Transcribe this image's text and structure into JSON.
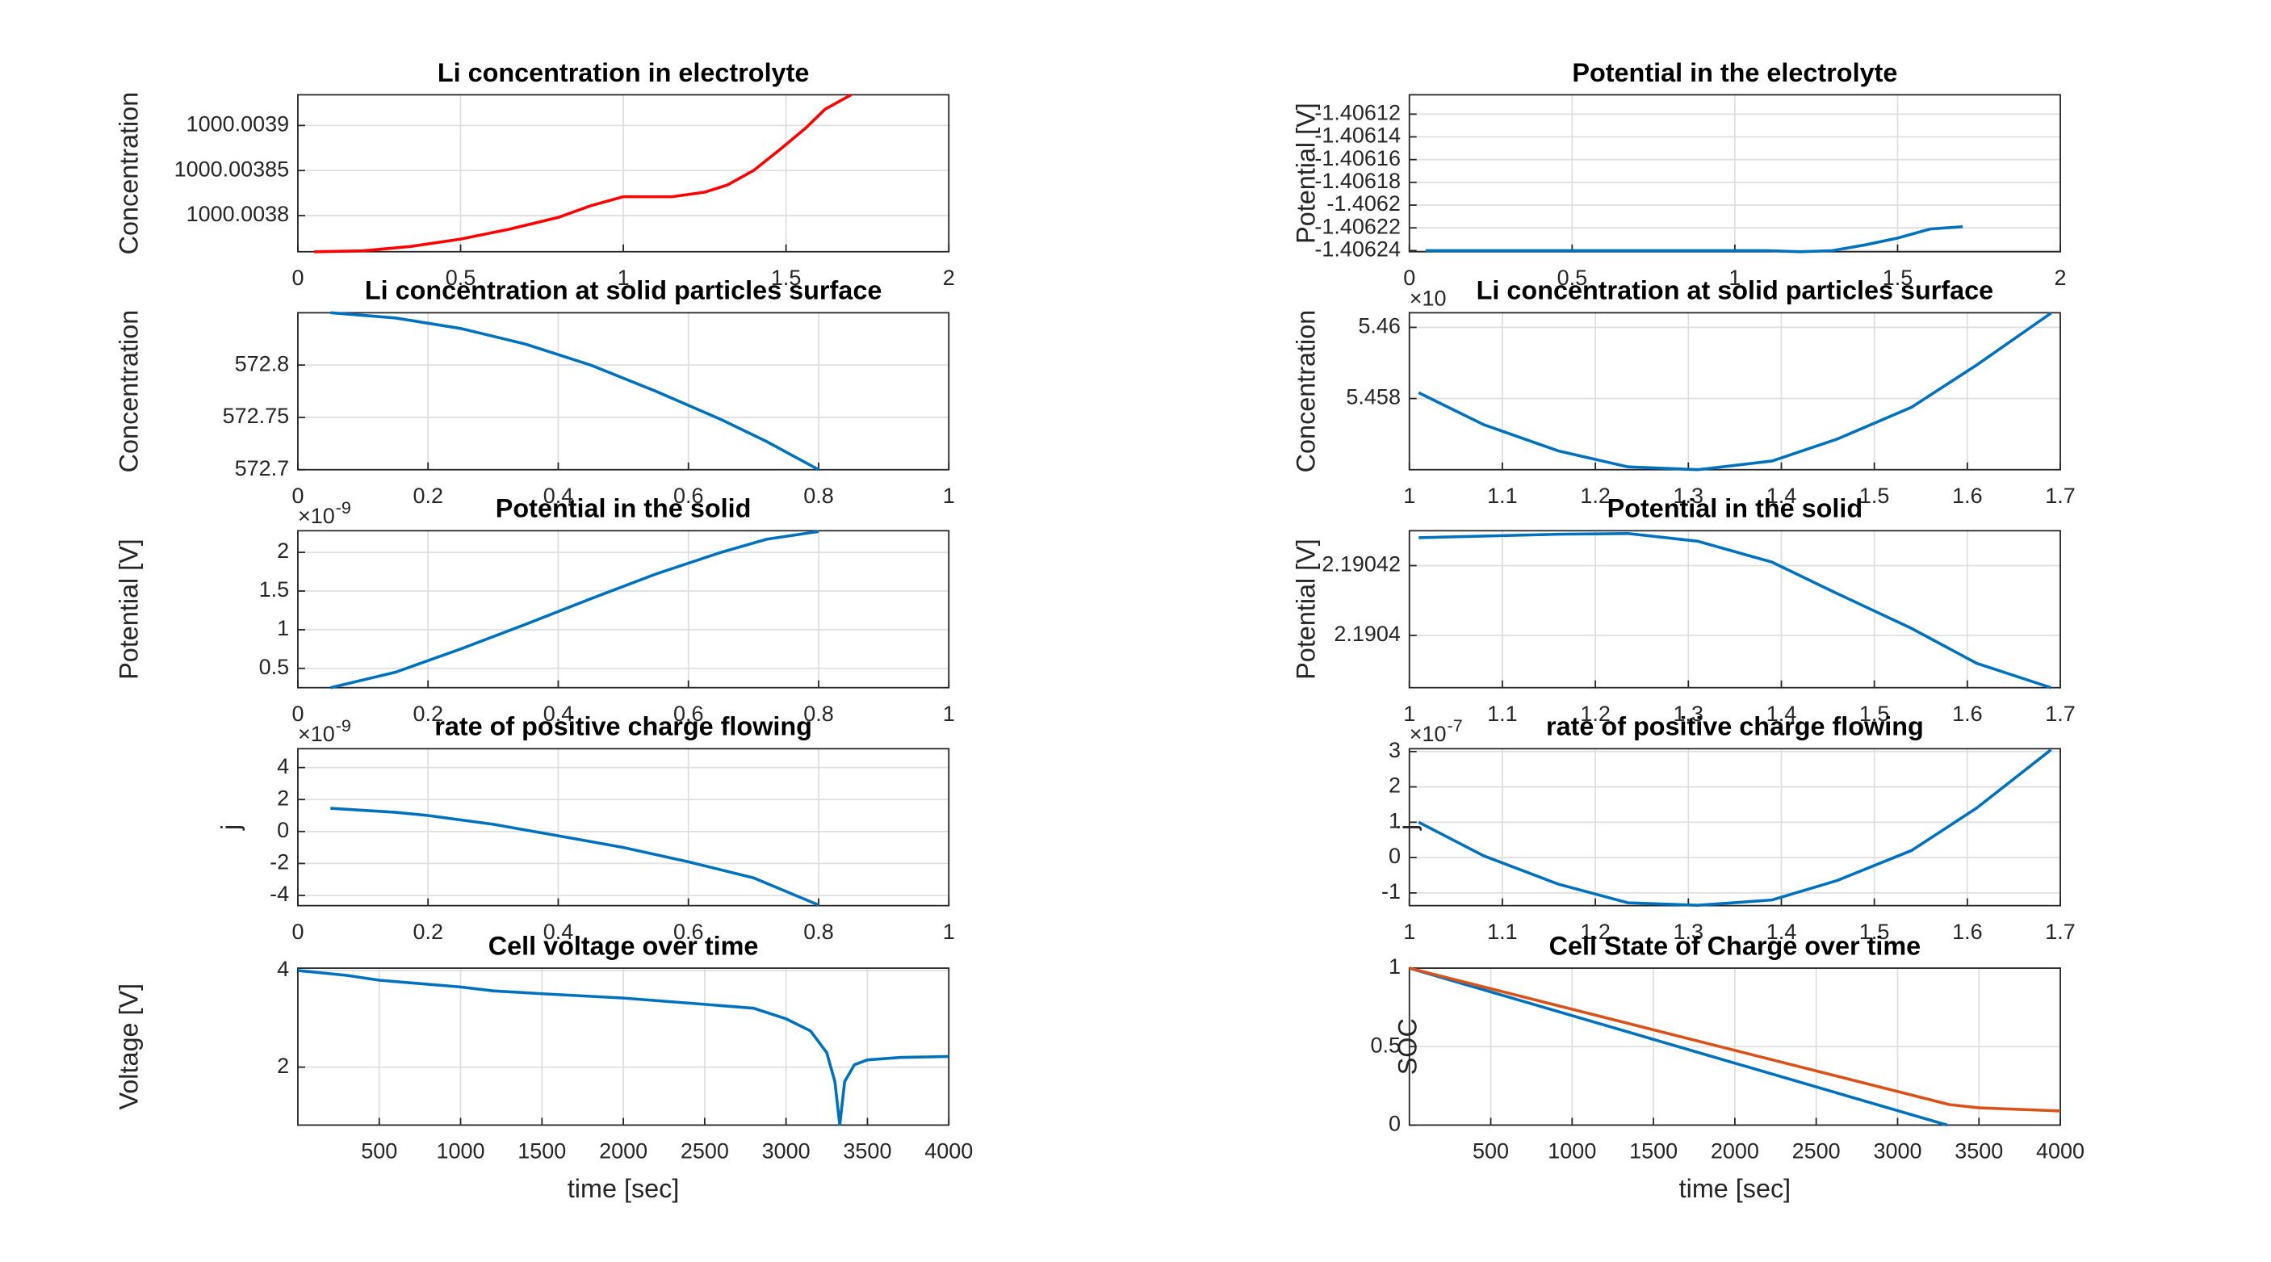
{
  "chart_data": [
    {
      "type": "line",
      "title": "Li concentration in electrolyte",
      "ylabel": "Concentration",
      "xlim": [
        0,
        2
      ],
      "ylim": [
        1000.00376,
        1000.003934
      ],
      "xticks": [
        0,
        0.5,
        1,
        1.5,
        2
      ],
      "yticks": [
        1000.0038,
        1000.00385,
        1000.0039
      ],
      "grid": true,
      "series": [
        {
          "color": "#ff0000",
          "x": [
            0.05,
            0.2,
            0.35,
            0.5,
            0.65,
            0.8,
            0.9,
            1.0,
            1.15,
            1.25,
            1.32,
            1.4,
            1.48,
            1.56,
            1.62,
            1.7
          ],
          "values": [
            1000.00376,
            1000.003761,
            1000.003766,
            1000.003774,
            1000.003785,
            1000.003798,
            1000.003811,
            1000.003821,
            1000.003821,
            1000.003826,
            1000.003834,
            1000.00385,
            1000.003873,
            1000.003897,
            1000.003918,
            1000.003934
          ]
        }
      ]
    },
    {
      "type": "line",
      "title": "Potential in the electrolyte",
      "ylabel": "Potential [V]",
      "xlim": [
        0,
        2
      ],
      "ylim": [
        -1.406241,
        -1.406103
      ],
      "xticks": [
        0,
        0.5,
        1,
        1.5,
        2
      ],
      "yticks": [
        -1.40624,
        -1.40622,
        -1.4062,
        -1.40618,
        -1.40616,
        -1.40614,
        -1.40612
      ],
      "grid": true,
      "series": [
        {
          "color": "#0072bd",
          "x": [
            0.05,
            0.3,
            0.6,
            0.9,
            1.1,
            1.2,
            1.3,
            1.4,
            1.5,
            1.6,
            1.7
          ],
          "values": [
            -1.40624,
            -1.40624,
            -1.40624,
            -1.40624,
            -1.40624,
            -1.406241,
            -1.40624,
            -1.406235,
            -1.406229,
            -1.406221,
            -1.406219
          ]
        }
      ]
    },
    {
      "type": "line",
      "title": "Li concentration at solid particles surface",
      "ylabel": "Concentration",
      "xlim": [
        0,
        1
      ],
      "ylim": [
        572.7,
        572.85
      ],
      "xticks": [
        0,
        0.2,
        0.4,
        0.6,
        0.8,
        1
      ],
      "yticks": [
        572.7,
        572.75,
        572.8
      ],
      "grid": true,
      "series": [
        {
          "color": "#0072bd",
          "x": [
            0.05,
            0.15,
            0.25,
            0.35,
            0.45,
            0.55,
            0.65,
            0.72,
            0.8
          ],
          "values": [
            572.85,
            572.845,
            572.835,
            572.82,
            572.8,
            572.775,
            572.748,
            572.727,
            572.7
          ]
        }
      ]
    },
    {
      "type": "line",
      "title": "Li concentration at solid particles surface",
      "ylabel": "Concentration",
      "y_multiplier": "×10",
      "xlim": [
        1,
        1.7
      ],
      "ylim": [
        5.456,
        5.46041
      ],
      "xticks": [
        1,
        1.1,
        1.2,
        1.3,
        1.4,
        1.5,
        1.6,
        1.7
      ],
      "yticks": [
        5.458,
        5.46
      ],
      "grid": true,
      "series": [
        {
          "color": "#0072bd",
          "x": [
            1.01,
            1.08,
            1.16,
            1.235,
            1.31,
            1.39,
            1.46,
            1.54,
            1.61,
            1.69
          ],
          "values": [
            5.458163,
            5.457265,
            5.45653,
            5.45608,
            5.456,
            5.456245,
            5.45686,
            5.457755,
            5.45894,
            5.4604
          ]
        }
      ]
    },
    {
      "type": "line",
      "title": "Potential in the solid",
      "ylabel": "Potential [V]",
      "y_multiplier": "×10",
      "y_exponent": "-9",
      "xlim": [
        0,
        1
      ],
      "ylim": [
        0.25,
        2.28
      ],
      "xticks": [
        0,
        0.2,
        0.4,
        0.6,
        0.8,
        1
      ],
      "yticks": [
        0.5,
        1,
        1.5,
        2
      ],
      "grid": true,
      "series": [
        {
          "color": "#0072bd",
          "x": [
            0.05,
            0.15,
            0.25,
            0.35,
            0.45,
            0.55,
            0.65,
            0.72,
            0.8
          ],
          "values": [
            0.25,
            0.45,
            0.75,
            1.07,
            1.4,
            1.72,
            2.0,
            2.17,
            2.27
          ]
        }
      ]
    },
    {
      "type": "line",
      "title": "Potential in the solid",
      "ylabel": "Potential [V]",
      "xlim": [
        1,
        1.7
      ],
      "ylim": [
        2.190385,
        2.19043
      ],
      "xticks": [
        1,
        1.1,
        1.2,
        1.3,
        1.4,
        1.5,
        1.6,
        1.7
      ],
      "yticks": [
        2.1904,
        2.19042
      ],
      "grid": true,
      "series": [
        {
          "color": "#0072bd",
          "x": [
            1.01,
            1.16,
            1.235,
            1.31,
            1.39,
            1.46,
            1.54,
            1.61,
            1.69
          ],
          "values": [
            2.190428,
            2.190429,
            2.1904292,
            2.190427,
            2.190421,
            2.190412,
            2.190402,
            2.190392,
            2.190385
          ]
        }
      ]
    },
    {
      "type": "line",
      "title": "rate of positive charge flowing",
      "ylabel": "j",
      "y_multiplier": "×10",
      "y_exponent": "-9",
      "xlim": [
        0,
        1
      ],
      "ylim": [
        -4.64,
        5.18
      ],
      "xticks": [
        0,
        0.2,
        0.4,
        0.6,
        0.8,
        1
      ],
      "yticks": [
        -4,
        -2,
        0,
        2,
        4
      ],
      "grid": true,
      "series": [
        {
          "color": "#0072bd",
          "x": [
            0.05,
            0.15,
            0.2,
            0.3,
            0.4,
            0.5,
            0.6,
            0.7,
            0.8
          ],
          "values": [
            1.45,
            1.2,
            1.0,
            0.45,
            -0.27,
            -1.0,
            -1.9,
            -2.9,
            -4.6
          ]
        }
      ]
    },
    {
      "type": "line",
      "title": "rate of positive charge flowing",
      "ylabel": "j",
      "y_multiplier": "×10",
      "y_exponent": "-7",
      "xlim": [
        1,
        1.7
      ],
      "ylim": [
        -1.36,
        3.08
      ],
      "xticks": [
        1,
        1.1,
        1.2,
        1.3,
        1.4,
        1.5,
        1.6,
        1.7
      ],
      "yticks": [
        -1,
        0,
        1,
        2,
        3
      ],
      "grid": true,
      "series": [
        {
          "color": "#0072bd",
          "x": [
            1.01,
            1.08,
            1.16,
            1.235,
            1.31,
            1.39,
            1.46,
            1.54,
            1.61,
            1.69
          ],
          "values": [
            1.0,
            0.05,
            -0.75,
            -1.28,
            -1.35,
            -1.2,
            -0.65,
            0.2,
            1.4,
            3.05
          ]
        }
      ]
    },
    {
      "type": "line",
      "title": "Cell voltage over time",
      "ylabel": "Voltage [V]",
      "xlabel": "time [sec]",
      "xlim": [
        0,
        4000
      ],
      "ylim": [
        0.8,
        4.05
      ],
      "xticks": [
        500,
        1000,
        1500,
        2000,
        2500,
        3000,
        3500,
        4000
      ],
      "yticks": [
        2,
        4
      ],
      "grid": true,
      "series": [
        {
          "color": "#0072bd",
          "x": [
            0,
            300,
            500,
            1000,
            1200,
            1500,
            2000,
            2500,
            2800,
            3000,
            3150,
            3250,
            3300,
            3330,
            3360,
            3420,
            3500,
            3700,
            4000
          ],
          "values": [
            4.0,
            3.9,
            3.8,
            3.66,
            3.58,
            3.52,
            3.43,
            3.3,
            3.22,
            3.0,
            2.75,
            2.3,
            1.7,
            0.8,
            1.7,
            2.05,
            2.15,
            2.2,
            2.22
          ]
        }
      ]
    },
    {
      "type": "line",
      "title": "Cell State of Charge over time",
      "ylabel": "SOC",
      "xlabel": "time [sec]",
      "xlim": [
        0,
        4000
      ],
      "ylim": [
        0,
        1
      ],
      "xticks": [
        500,
        1000,
        1500,
        2000,
        2500,
        3000,
        3500,
        4000
      ],
      "yticks": [
        0,
        0.5,
        1
      ],
      "grid": true,
      "series": [
        {
          "color": "#0072bd",
          "x": [
            0,
            3304
          ],
          "values": [
            1,
            0
          ]
        },
        {
          "color": "#d95319",
          "x": [
            0,
            3321,
            3500,
            4000
          ],
          "values": [
            1,
            0.13,
            0.11,
            0.09
          ]
        }
      ]
    }
  ]
}
